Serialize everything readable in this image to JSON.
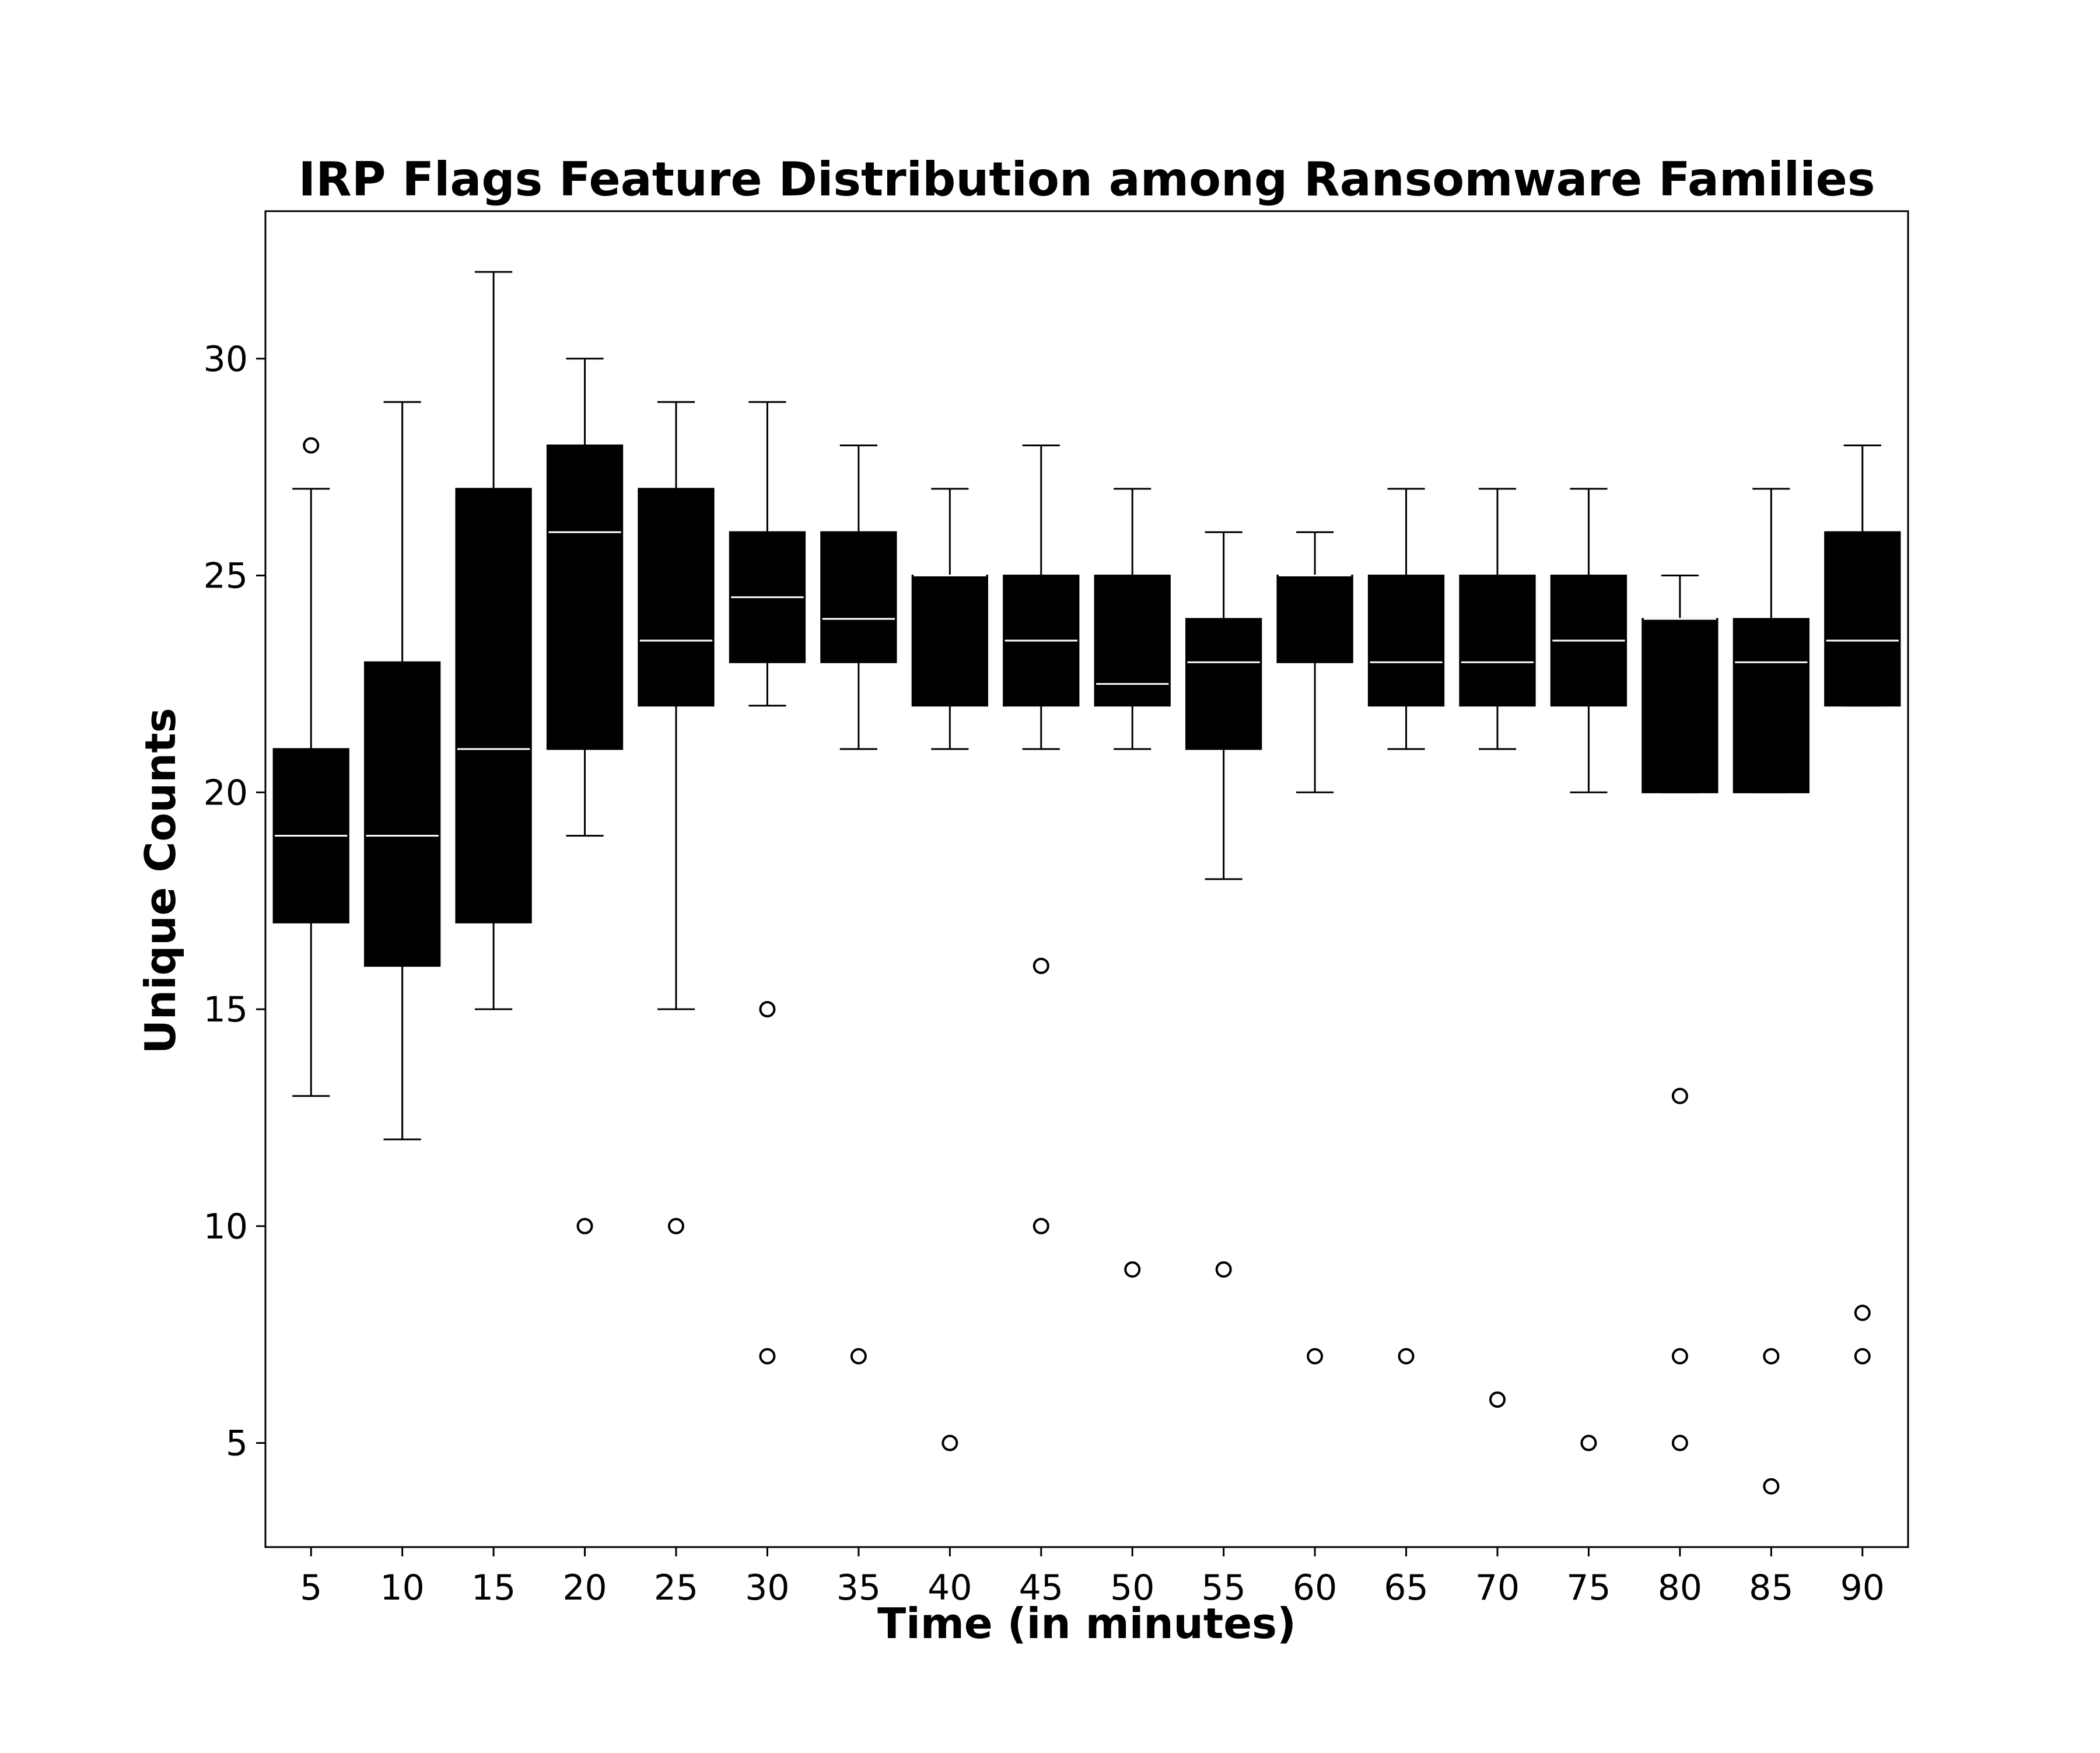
{
  "chart_data": {
    "type": "box",
    "title": "IRP Flags Feature Distribution among Ransomware Families",
    "xlabel": "Time (in minutes)",
    "ylabel": "Unique Counts",
    "ylim": [
      2.6,
      33.4
    ],
    "yticks": [
      5,
      10,
      15,
      20,
      25,
      30
    ],
    "grid": false,
    "legend": "none",
    "colors": {
      "box": "#000000",
      "median": "#ffffff",
      "whisker": "#000000",
      "outlier": "#000000"
    },
    "categories": [
      "5",
      "10",
      "15",
      "20",
      "25",
      "30",
      "35",
      "40",
      "45",
      "50",
      "55",
      "60",
      "65",
      "70",
      "75",
      "80",
      "85",
      "90"
    ],
    "boxes": [
      {
        "x": "5",
        "whislo": 13,
        "q1": 17,
        "med": 19,
        "q3": 21,
        "whishi": 27,
        "fliers": [
          28
        ]
      },
      {
        "x": "10",
        "whislo": 12,
        "q1": 16,
        "med": 19,
        "q3": 23,
        "whishi": 29,
        "fliers": []
      },
      {
        "x": "15",
        "whislo": 15,
        "q1": 17,
        "med": 21,
        "q3": 27,
        "whishi": 32,
        "fliers": []
      },
      {
        "x": "20",
        "whislo": 19,
        "q1": 21,
        "med": 26,
        "q3": 28,
        "whishi": 30,
        "fliers": [
          10
        ]
      },
      {
        "x": "25",
        "whislo": 15,
        "q1": 22,
        "med": 23.5,
        "q3": 27,
        "whishi": 29,
        "fliers": [
          10
        ]
      },
      {
        "x": "30",
        "whislo": 22,
        "q1": 23,
        "med": 24.5,
        "q3": 26,
        "whishi": 29,
        "fliers": [
          15,
          7
        ]
      },
      {
        "x": "35",
        "whislo": 21,
        "q1": 23,
        "med": 24,
        "q3": 26,
        "whishi": 28,
        "fliers": [
          7
        ]
      },
      {
        "x": "40",
        "whislo": 21,
        "q1": 22,
        "med": 25,
        "q3": 25,
        "whishi": 27,
        "fliers": [
          5
        ]
      },
      {
        "x": "45",
        "whislo": 21,
        "q1": 22,
        "med": 23.5,
        "q3": 25,
        "whishi": 28,
        "fliers": [
          16,
          10
        ]
      },
      {
        "x": "50",
        "whislo": 21,
        "q1": 22,
        "med": 22.5,
        "q3": 25,
        "whishi": 27,
        "fliers": [
          9
        ]
      },
      {
        "x": "55",
        "whislo": 18,
        "q1": 21,
        "med": 23,
        "q3": 24,
        "whishi": 26,
        "fliers": [
          9
        ]
      },
      {
        "x": "60",
        "whislo": 20,
        "q1": 23,
        "med": 25,
        "q3": 25,
        "whishi": 26,
        "fliers": [
          7
        ]
      },
      {
        "x": "65",
        "whislo": 21,
        "q1": 22,
        "med": 23,
        "q3": 25,
        "whishi": 27,
        "fliers": [
          7
        ]
      },
      {
        "x": "70",
        "whislo": 21,
        "q1": 22,
        "med": 23,
        "q3": 25,
        "whishi": 27,
        "fliers": [
          6
        ]
      },
      {
        "x": "75",
        "whislo": 20,
        "q1": 22,
        "med": 23.5,
        "q3": 25,
        "whishi": 27,
        "fliers": [
          5
        ]
      },
      {
        "x": "80",
        "whislo": 20,
        "q1": 20,
        "med": 24,
        "q3": 24,
        "whishi": 25,
        "fliers": [
          13,
          7,
          5
        ]
      },
      {
        "x": "85",
        "whislo": 20,
        "q1": 20,
        "med": 23,
        "q3": 24,
        "whishi": 27,
        "fliers": [
          7,
          4
        ]
      },
      {
        "x": "90",
        "whislo": 22,
        "q1": 22,
        "med": 23.5,
        "q3": 26,
        "whishi": 28,
        "fliers": [
          8,
          7
        ]
      }
    ]
  }
}
